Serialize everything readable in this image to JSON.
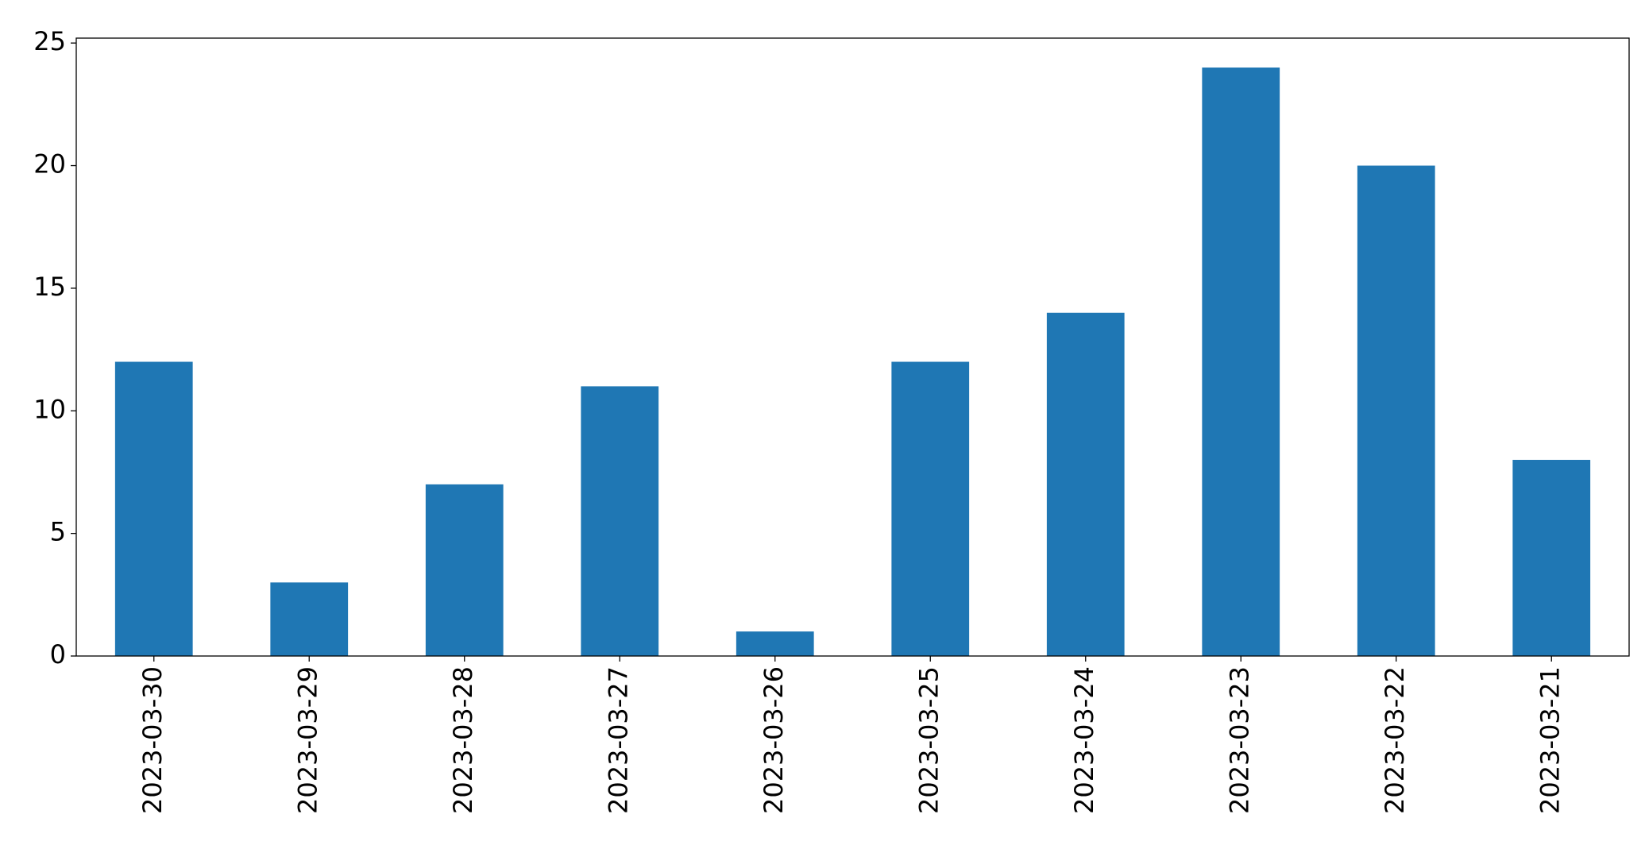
{
  "chart_data": {
    "type": "bar",
    "categories": [
      "2023-03-30",
      "2023-03-29",
      "2023-03-28",
      "2023-03-27",
      "2023-03-26",
      "2023-03-25",
      "2023-03-24",
      "2023-03-23",
      "2023-03-22",
      "2023-03-21"
    ],
    "values": [
      12,
      3,
      7,
      11,
      1,
      12,
      14,
      24,
      20,
      8
    ],
    "color": "#1f77b4",
    "ylim": [
      0,
      25.2
    ],
    "yticks": [
      0,
      5,
      10,
      15,
      20,
      25
    ],
    "grid": false
  }
}
